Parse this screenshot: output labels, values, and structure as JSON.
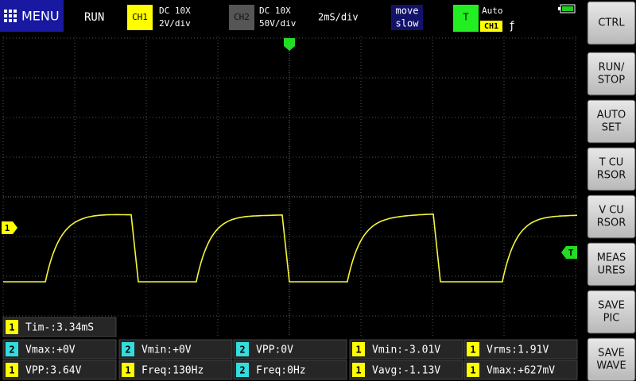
{
  "top_bar": {
    "menu": "MENU",
    "status": "RUN",
    "ch1": {
      "badge": "CH1",
      "coupling": "DC 10X",
      "scale": "2V/div"
    },
    "ch2": {
      "badge": "CH2",
      "coupling": "DC 10X",
      "scale": "50V/div"
    },
    "timebase": "2mS/div",
    "move": [
      "move",
      "slow"
    ],
    "trigger": {
      "badge": "T",
      "mode": "Auto",
      "source": "CH1",
      "edge": "ƒ"
    }
  },
  "markers": {
    "channel": "1",
    "trigger": "T"
  },
  "buttons": [
    [
      "CTRL"
    ],
    [
      "RUN/",
      "STOP"
    ],
    [
      "AUTO",
      "SET"
    ],
    [
      "T CU",
      "RSOR"
    ],
    [
      "V CU",
      "RSOR"
    ],
    [
      "MEAS",
      "URES"
    ],
    [
      "SAVE",
      "PIC"
    ],
    [
      "SAVE",
      "WAVE"
    ]
  ],
  "measurements": [
    [
      {
        "ch": "1",
        "text": "Tim-:3.34mS"
      }
    ],
    [
      {
        "ch": "2",
        "text": "Vmax:+0V"
      },
      {
        "ch": "2",
        "text": "Vmin:+0V"
      },
      {
        "ch": "2",
        "text": "VPP:0V"
      },
      {
        "ch": "1",
        "text": "Vmin:-3.01V"
      },
      {
        "ch": "1",
        "text": "Vrms:1.91V"
      }
    ],
    [
      {
        "ch": "1",
        "text": "VPP:3.64V"
      },
      {
        "ch": "1",
        "text": "Freq:130Hz"
      },
      {
        "ch": "2",
        "text": "Freq:0Hz"
      },
      {
        "ch": "1",
        "text": "Vavg:-1.13V"
      },
      {
        "ch": "1",
        "text": "Vmax:+627mV"
      }
    ]
  ]
}
